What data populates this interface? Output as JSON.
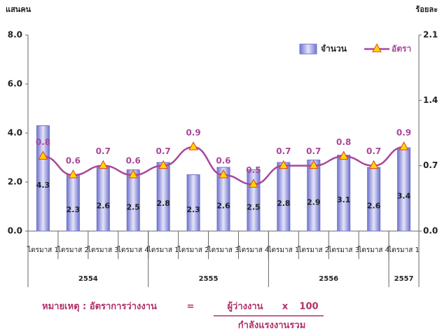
{
  "chart_data": {
    "type": "bar_line",
    "y_label": "แสนคน",
    "y2_label": "ร้อยละ",
    "categories": [
      "ไตรมาส 1",
      "ไตรมาส 2",
      "ไตรมาส 3",
      "ไตรมาส 4",
      "ไตรมาส 1",
      "ไตรมาส 2",
      "ไตรมาส 3",
      "ไตรมาส 4",
      "ไตรมาส 1",
      "ไตรมาส 2",
      "ไตรมาส 3",
      "ไตรมาส 4",
      "ไตรมาส 1"
    ],
    "groups": [
      {
        "label": "2554",
        "count": 4
      },
      {
        "label": "2555",
        "count": 4
      },
      {
        "label": "2556",
        "count": 4
      },
      {
        "label": "2557",
        "count": 1
      }
    ],
    "series": [
      {
        "name": "จำนวน",
        "color": "#7074cc",
        "values": [
          4.3,
          2.3,
          2.6,
          2.5,
          2.8,
          2.3,
          2.6,
          2.5,
          2.8,
          2.9,
          3.1,
          2.6,
          3.4
        ]
      },
      {
        "name": "อัตรา",
        "color": "#a8479a",
        "marker_color": "#ffd700",
        "axis": "y2",
        "values": [
          0.8,
          0.6,
          0.7,
          0.6,
          0.7,
          0.9,
          0.6,
          0.5,
          0.7,
          0.7,
          0.8,
          0.7,
          0.9
        ]
      }
    ],
    "ylim": [
      0,
      8
    ],
    "yticks": [
      {
        "value": 0,
        "label": "0.0"
      },
      {
        "value": 2,
        "label": "2.0"
      },
      {
        "value": 4,
        "label": "4.0"
      },
      {
        "value": 6,
        "label": "6.0"
      },
      {
        "value": 8,
        "label": "8.0"
      }
    ],
    "y2lim": [
      0,
      2.1
    ],
    "y2ticks": [
      {
        "value": 0,
        "label": "0.0"
      },
      {
        "value": 0.7,
        "label": "0.7"
      },
      {
        "value": 1.4,
        "label": "1.4"
      },
      {
        "value": 2.1,
        "label": "2.1"
      }
    ],
    "legend": "top-right",
    "note": {
      "label": "หมายเหตุ : อัตราการว่างงาน",
      "eq": "=",
      "numerator": "ผู้ว่างงาน",
      "times": "x",
      "factor": "100",
      "denominator": "กำลังแรงงานรวม"
    }
  }
}
